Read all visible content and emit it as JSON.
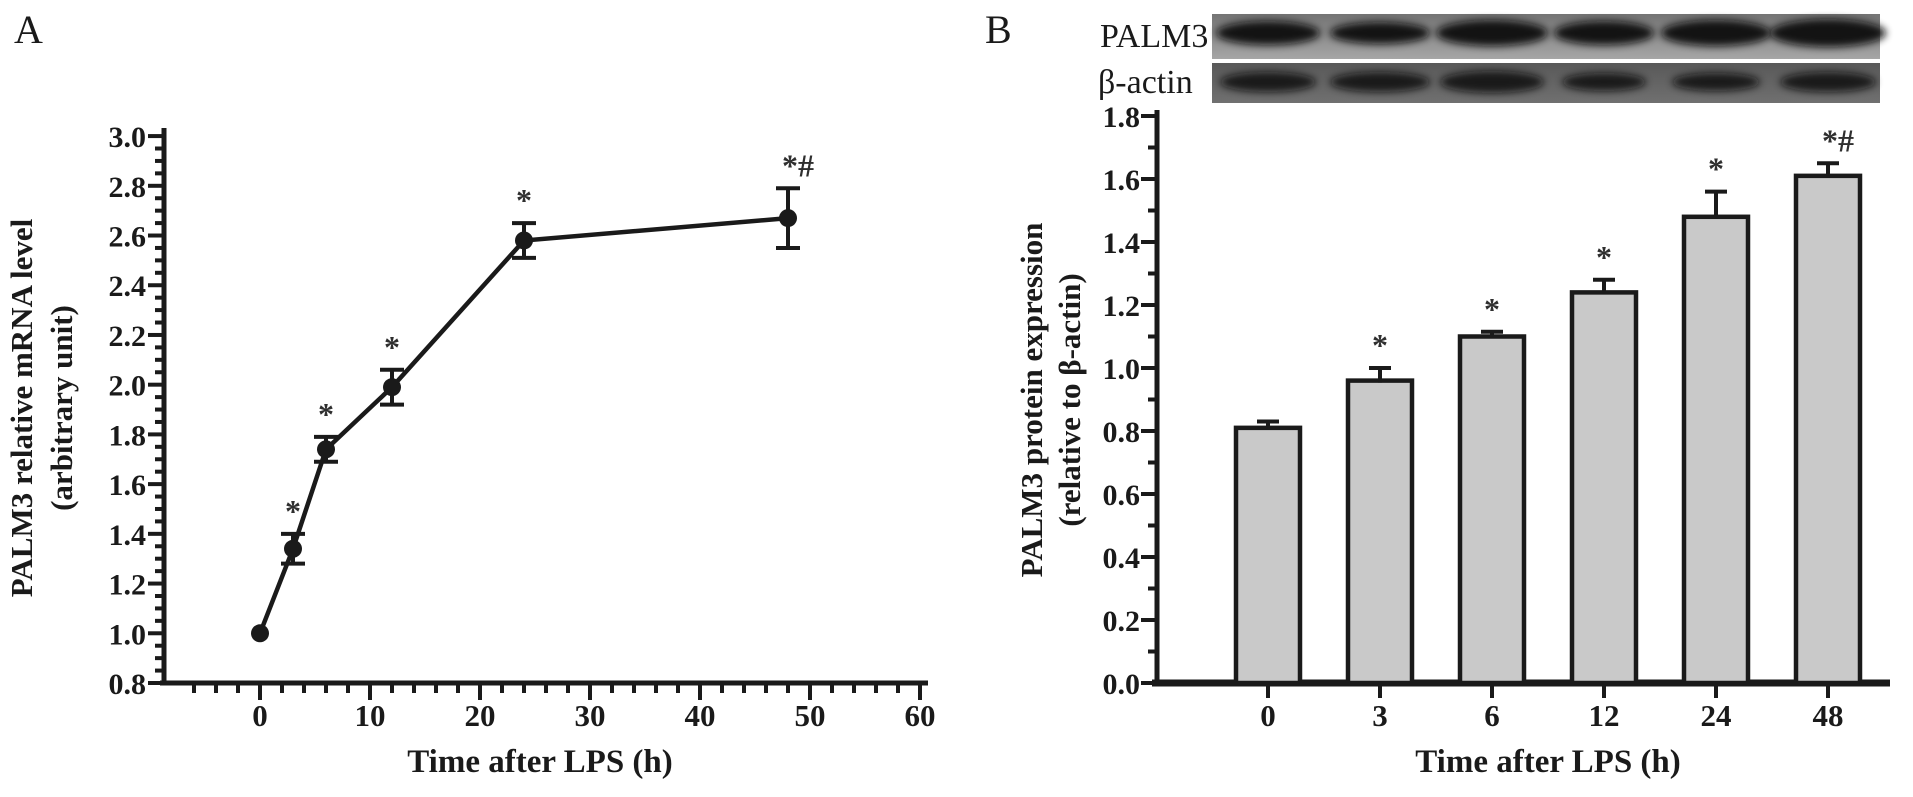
{
  "figure": {
    "background": "#ffffff",
    "ink_color": "#1a1a1a",
    "annotation_color": "#2f2f2f"
  },
  "panels": {
    "a": {
      "letter": "A"
    },
    "b": {
      "letter": "B",
      "blot": {
        "rows": [
          {
            "label": "PALM3",
            "lanes": 6
          },
          {
            "label": "β-actin",
            "lanes": 6
          }
        ]
      }
    }
  },
  "chart_data": [
    {
      "panel": "A",
      "type": "line",
      "x": [
        0,
        3,
        6,
        12,
        24,
        48
      ],
      "y": [
        1.0,
        1.34,
        1.74,
        1.99,
        2.58,
        2.67
      ],
      "errors": [
        0,
        0.06,
        0.05,
        0.07,
        0.07,
        0.12
      ],
      "annotations": [
        "",
        "*",
        "*",
        "*",
        "*",
        "*#"
      ],
      "xlabel": "Time after LPS (h)",
      "ylabel_line1": "PALM3 relative mRNA level",
      "ylabel_line2": "(arbitrary unit)",
      "xlim": [
        -8,
        62
      ],
      "ylim": [
        0.8,
        3.0
      ],
      "x_tick_labels": [
        "0",
        "10",
        "20",
        "30",
        "40",
        "50",
        "60"
      ],
      "x_major_step": 10,
      "x_minor_step": 2,
      "y_major_step": 0.2,
      "y_minor_step": 0.05,
      "marker": "filled-circle",
      "line_color": "#1a1a1a",
      "grid": "off",
      "legend": "none"
    },
    {
      "panel": "B",
      "type": "bar",
      "categories": [
        "0",
        "3",
        "6",
        "12",
        "24",
        "48"
      ],
      "values": [
        0.81,
        0.96,
        1.1,
        1.24,
        1.48,
        1.61
      ],
      "errors": [
        0.02,
        0.04,
        0.015,
        0.04,
        0.08,
        0.04
      ],
      "annotations": [
        "",
        "*",
        "*",
        "*",
        "*",
        "*#"
      ],
      "xlabel": "Time after LPS (h)",
      "ylabel_line1": "PALM3 protein expression",
      "ylabel_line2": "(relative to β-actin)",
      "ylim": [
        0.0,
        1.8
      ],
      "y_major_step": 0.2,
      "y_minor_step": 0.1,
      "bar_color": "#c9c9c9",
      "bar_border": "#1a1a1a",
      "grid": "off",
      "legend": "none"
    }
  ]
}
